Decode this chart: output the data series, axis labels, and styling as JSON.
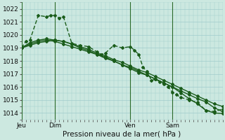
{
  "xlabel": "Pression niveau de la mer( hPa )",
  "bg_color": "#cce8e0",
  "grid_color": "#a0cccc",
  "line_color": "#1a5c1a",
  "ylim": [
    1013.5,
    1022.5
  ],
  "yticks": [
    1014,
    1015,
    1016,
    1017,
    1018,
    1019,
    1020,
    1021,
    1022
  ],
  "xlim": [
    0,
    96
  ],
  "xtick_positions": [
    0,
    16,
    52,
    72
  ],
  "xtick_labels": [
    "Jeu",
    "Dim",
    "Ven",
    "Sam"
  ],
  "day_vlines": [
    0,
    16,
    52,
    72
  ],
  "series": [
    {
      "x": [
        0,
        2,
        4,
        8,
        12,
        14,
        16,
        18,
        20,
        24,
        28,
        32,
        36,
        38,
        40,
        44,
        48,
        52,
        54,
        56,
        58,
        60,
        62,
        64,
        66,
        68,
        70,
        72,
        74,
        76,
        80,
        84,
        88,
        92,
        96
      ],
      "y": [
        1019.0,
        1019.5,
        1019.6,
        1021.5,
        1021.4,
        1021.5,
        1021.5,
        1021.3,
        1021.4,
        1019.35,
        1019.2,
        1019.1,
        1018.7,
        1018.5,
        1018.6,
        1019.2,
        1019.0,
        1019.1,
        1018.8,
        1018.5,
        1017.5,
        1017.2,
        1016.5,
        1016.6,
        1016.4,
        1016.2,
        1016.0,
        1015.6,
        1015.4,
        1015.2,
        1015.0,
        1014.8,
        1014.2,
        1014.1,
        1014.3
      ],
      "dashes": [
        4,
        2
      ],
      "marker": "D",
      "ms": 2.0,
      "lw": 1.0
    },
    {
      "x": [
        0,
        4,
        8,
        12,
        16,
        20,
        24,
        28,
        32,
        36,
        40,
        44,
        48,
        52,
        56,
        60,
        64,
        68,
        72,
        76,
        80,
        84,
        88,
        92,
        96
      ],
      "y": [
        1019.0,
        1019.2,
        1019.4,
        1019.5,
        1019.6,
        1019.5,
        1019.3,
        1019.1,
        1018.9,
        1018.6,
        1018.4,
        1018.1,
        1017.9,
        1017.6,
        1017.3,
        1017.1,
        1016.8,
        1016.5,
        1016.2,
        1015.9,
        1015.6,
        1015.3,
        1015.0,
        1014.7,
        1014.5
      ],
      "dashes": [],
      "marker": "D",
      "ms": 2.0,
      "lw": 1.0
    },
    {
      "x": [
        0,
        4,
        8,
        12,
        16,
        20,
        24,
        28,
        32,
        36,
        40,
        44,
        48,
        52,
        56,
        60,
        64,
        68,
        72,
        76,
        80,
        84,
        88,
        92,
        96
      ],
      "y": [
        1019.0,
        1019.3,
        1019.5,
        1019.6,
        1019.5,
        1019.3,
        1019.1,
        1018.9,
        1018.7,
        1018.5,
        1018.2,
        1018.0,
        1017.7,
        1017.4,
        1017.1,
        1016.9,
        1016.6,
        1016.3,
        1016.0,
        1015.7,
        1015.4,
        1015.1,
        1014.85,
        1014.4,
        1014.1
      ],
      "dashes": [],
      "marker": "D",
      "ms": 2.0,
      "lw": 1.0
    },
    {
      "x": [
        0,
        4,
        8,
        12,
        16,
        20,
        24,
        28,
        32,
        36,
        40,
        44,
        48,
        52,
        56,
        60,
        64,
        68,
        72,
        76,
        80,
        84,
        88,
        92,
        96
      ],
      "y": [
        1019.0,
        1019.4,
        1019.6,
        1019.7,
        1019.6,
        1019.5,
        1019.3,
        1019.0,
        1018.8,
        1018.5,
        1018.3,
        1018.0,
        1017.7,
        1017.5,
        1017.2,
        1016.9,
        1016.6,
        1016.3,
        1016.0,
        1015.55,
        1015.1,
        1014.7,
        1014.2,
        1014.0,
        1013.95
      ],
      "dashes": [],
      "marker": "D",
      "ms": 2.0,
      "lw": 1.0
    }
  ]
}
